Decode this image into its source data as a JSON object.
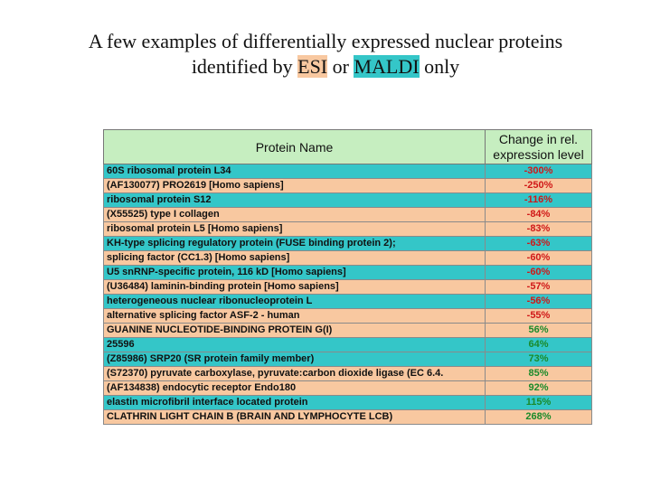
{
  "title": {
    "line1": "A few examples of differentially expressed nuclear proteins",
    "line2_prefix": "identified by ",
    "esi": "ESI",
    "or": " or ",
    "maldi": "MALDI",
    "line2_suffix": " only"
  },
  "colors": {
    "esi": "#f8c8a0",
    "maldi": "#34c6c8",
    "header": "#c6eec0",
    "negative": "#d01818",
    "positive": "#1a8a2a"
  },
  "table": {
    "headers": {
      "name": "Protein Name",
      "change": "Change in rel. expression level"
    },
    "rows": [
      {
        "name": "60S ribosomal protein L34",
        "value": "-300%",
        "method": "MALDI"
      },
      {
        "name": "(AF130077) PRO2619 [Homo sapiens]",
        "value": "-250%",
        "method": "ESI"
      },
      {
        "name": "ribosomal protein S12",
        "value": "-116%",
        "method": "MALDI"
      },
      {
        "name": "(X55525) type I collagen",
        "value": "-84%",
        "method": "ESI"
      },
      {
        "name": "ribosomal protein L5 [Homo sapiens]",
        "value": "-83%",
        "method": "ESI"
      },
      {
        "name": "KH-type splicing regulatory protein (FUSE binding protein 2);",
        "value": "-63%",
        "method": "MALDI"
      },
      {
        "name": "splicing factor (CC1.3) [Homo sapiens]",
        "value": "-60%",
        "method": "ESI"
      },
      {
        "name": "U5 snRNP-specific protein, 116 kD [Homo sapiens]",
        "value": "-60%",
        "method": "MALDI"
      },
      {
        "name": "(U36484) laminin-binding protein [Homo sapiens]",
        "value": "-57%",
        "method": "ESI"
      },
      {
        "name": "heterogeneous nuclear ribonucleoprotein L",
        "value": "-56%",
        "method": "MALDI"
      },
      {
        "name": "alternative splicing factor ASF-2 - human",
        "value": "-55%",
        "method": "ESI"
      },
      {
        "name": "GUANINE NUCLEOTIDE-BINDING PROTEIN G(I)",
        "value": "56%",
        "method": "ESI"
      },
      {
        "name": "25596",
        "value": "64%",
        "method": "MALDI"
      },
      {
        "name": "(Z85986) SRP20 (SR protein family member)",
        "value": "73%",
        "method": "MALDI"
      },
      {
        "name": "(S72370) pyruvate carboxylase, pyruvate:carbon dioxide ligase (EC 6.4.",
        "value": "85%",
        "method": "ESI"
      },
      {
        "name": "(AF134838) endocytic receptor Endo180",
        "value": "92%",
        "method": "ESI"
      },
      {
        "name": "elastin microfibril interface located protein",
        "value": "115%",
        "method": "MALDI"
      },
      {
        "name": "CLATHRIN LIGHT CHAIN B (BRAIN AND LYMPHOCYTE LCB)",
        "value": "268%",
        "method": "ESI"
      }
    ]
  }
}
